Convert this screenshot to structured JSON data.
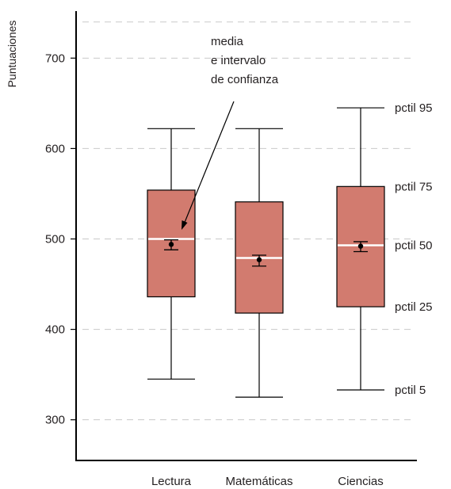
{
  "chart_data": {
    "type": "boxplot",
    "ylabel": "Puntuaciones",
    "xlabel": "",
    "ylim": [
      255,
      752
    ],
    "yticks": [
      300,
      400,
      500,
      600,
      700
    ],
    "grid": true,
    "categories": [
      "Lectura",
      "Matemáticas",
      "Ciencias"
    ],
    "boxes": [
      {
        "category": "Lectura",
        "p5": 345,
        "p25": 436,
        "p50": 500,
        "p75": 554,
        "p95": 622,
        "mean": 494,
        "ci_low": 488,
        "ci_high": 499
      },
      {
        "category": "Matemáticas",
        "p5": 325,
        "p25": 418,
        "p50": 479,
        "p75": 541,
        "p95": 622,
        "mean": 477,
        "ci_low": 470,
        "ci_high": 482
      },
      {
        "category": "Ciencias",
        "p5": 333,
        "p25": 425,
        "p50": 493,
        "p75": 558,
        "p95": 645,
        "mean": 492,
        "ci_low": 486,
        "ci_high": 497
      }
    ],
    "percentile_labels": [
      {
        "text": "pctil 95",
        "value": 645
      },
      {
        "text": "pctil 75",
        "value": 558
      },
      {
        "text": "pctil 50",
        "value": 493
      },
      {
        "text": "pctil 25",
        "value": 425
      },
      {
        "text": "pctil 5",
        "value": 333
      }
    ],
    "annotation": [
      "media",
      "e intervalo",
      "de confianza"
    ],
    "colors": {
      "box_fill": "#d27b6f",
      "median": "#ffffff",
      "grid": "#c9c9c9"
    }
  }
}
